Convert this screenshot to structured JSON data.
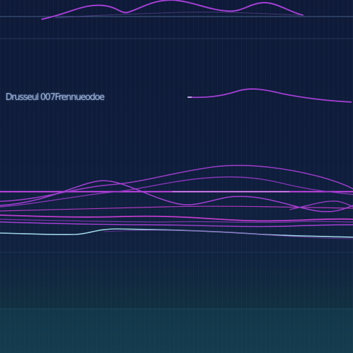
{
  "caption": "Drusseul 007Frennueodoe",
  "colors": {
    "background": "#0e1a38",
    "accent_purple": "#a63fd6",
    "accent_magenta": "#c23ccf",
    "accent_cyan": "#9fd4e6",
    "band_teal": "#15394a"
  }
}
